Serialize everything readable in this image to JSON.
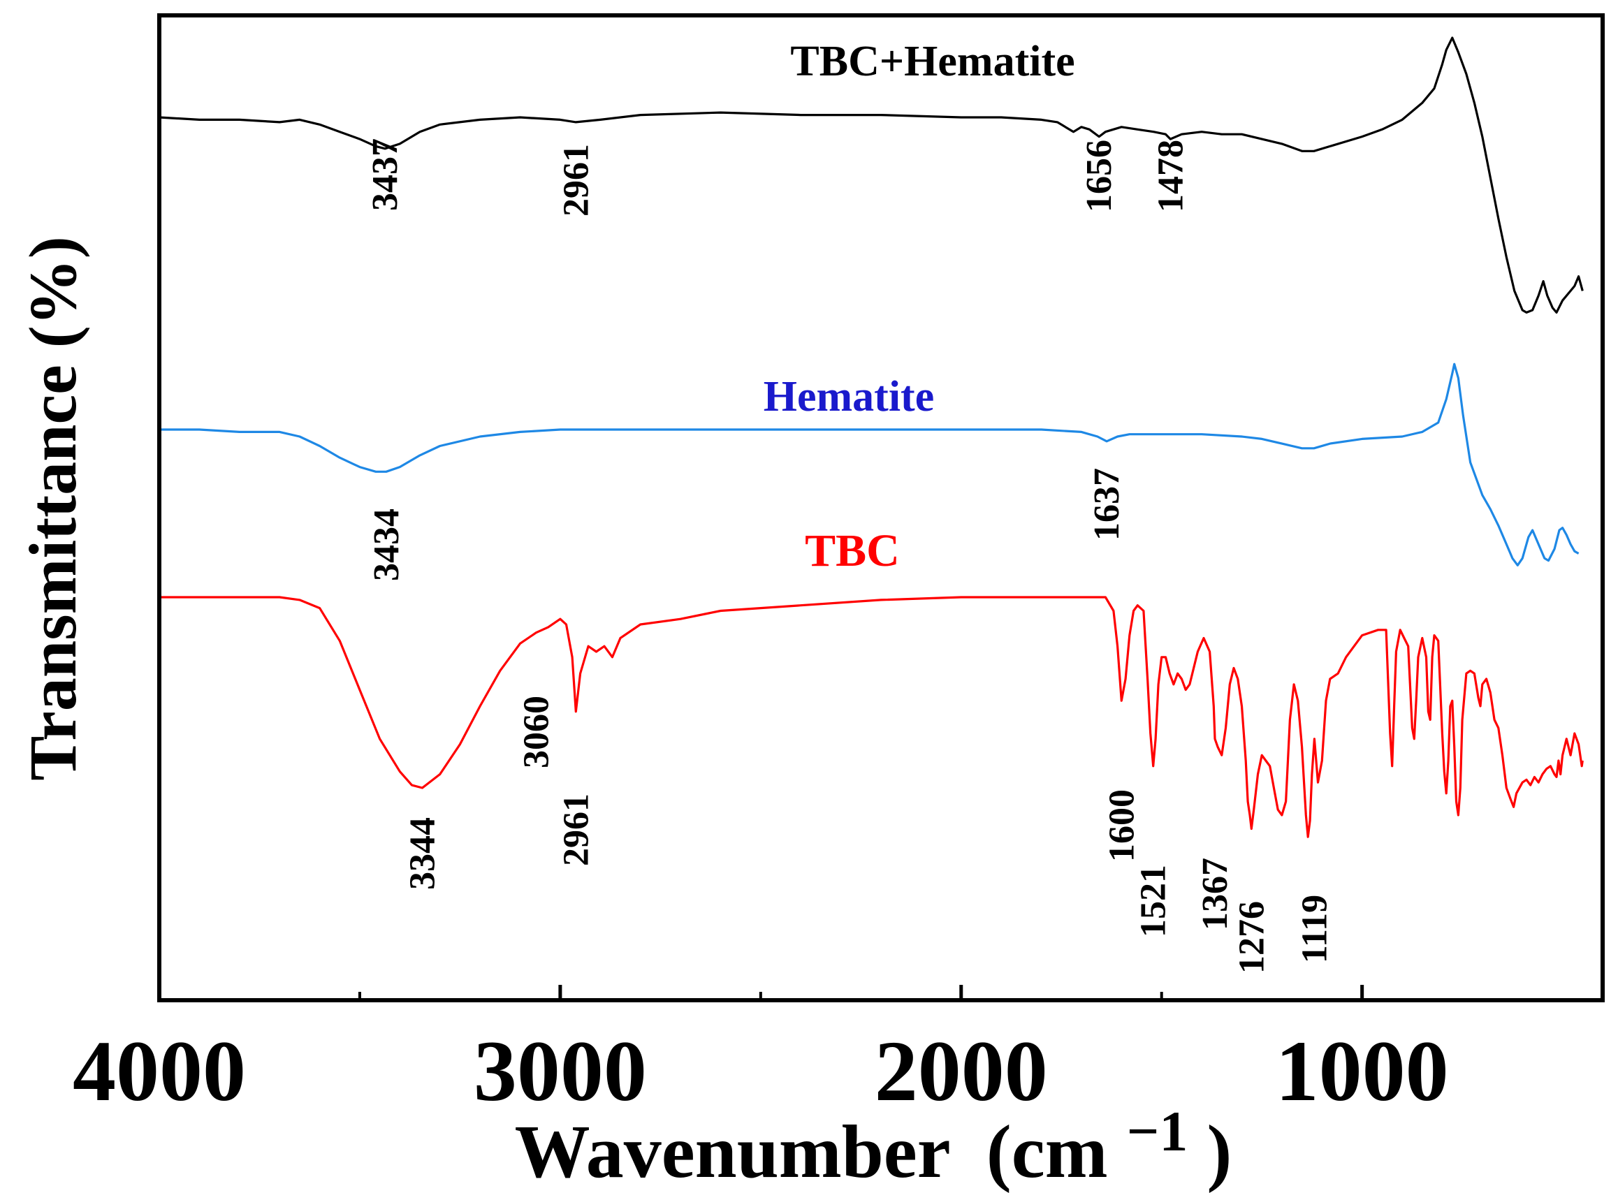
{
  "chart_data": {
    "type": "line",
    "title": "",
    "xlabel": "Wavenumber",
    "xlabel_unit": "(cm",
    "xlabel_sup": "−1",
    "xlabel_close": ")",
    "ylabel": "Transmittance (%)",
    "xlim": [
      4000,
      400
    ],
    "x_reversed": true,
    "xticks": [
      4000,
      3000,
      2000,
      1000
    ],
    "minor_xticks": [
      3500,
      2500,
      1500
    ],
    "y_ticks_shown": false,
    "grid": false,
    "series": [
      {
        "name": "TBC+Hematite",
        "label": "TBC+Hematite",
        "color": "#000000",
        "label_color": "#000000",
        "points": [
          [
            4000,
            100
          ],
          [
            3900,
            99
          ],
          [
            3800,
            99
          ],
          [
            3700,
            98
          ],
          [
            3650,
            99
          ],
          [
            3600,
            97
          ],
          [
            3550,
            94
          ],
          [
            3500,
            91
          ],
          [
            3460,
            88
          ],
          [
            3437,
            87
          ],
          [
            3400,
            89
          ],
          [
            3350,
            94
          ],
          [
            3300,
            97
          ],
          [
            3200,
            99
          ],
          [
            3100,
            100
          ],
          [
            3000,
            99
          ],
          [
            2961,
            98
          ],
          [
            2900,
            99
          ],
          [
            2800,
            101
          ],
          [
            2600,
            102
          ],
          [
            2400,
            101
          ],
          [
            2200,
            101
          ],
          [
            2000,
            100
          ],
          [
            1900,
            100
          ],
          [
            1800,
            99
          ],
          [
            1760,
            98
          ],
          [
            1720,
            94
          ],
          [
            1700,
            96
          ],
          [
            1680,
            95
          ],
          [
            1656,
            92
          ],
          [
            1640,
            94
          ],
          [
            1600,
            96
          ],
          [
            1560,
            95
          ],
          [
            1520,
            94
          ],
          [
            1490,
            93
          ],
          [
            1478,
            91
          ],
          [
            1450,
            93
          ],
          [
            1400,
            94
          ],
          [
            1350,
            93
          ],
          [
            1300,
            93
          ],
          [
            1250,
            91
          ],
          [
            1200,
            89
          ],
          [
            1150,
            86
          ],
          [
            1120,
            86
          ],
          [
            1080,
            88
          ],
          [
            1000,
            92
          ],
          [
            950,
            95
          ],
          [
            900,
            99
          ],
          [
            850,
            106
          ],
          [
            820,
            112
          ],
          [
            800,
            122
          ],
          [
            790,
            128
          ],
          [
            775,
            133
          ],
          [
            760,
            127
          ],
          [
            740,
            118
          ],
          [
            720,
            106
          ],
          [
            700,
            92
          ],
          [
            680,
            75
          ],
          [
            660,
            58
          ],
          [
            640,
            42
          ],
          [
            620,
            28
          ],
          [
            600,
            20
          ],
          [
            590,
            19
          ],
          [
            575,
            20
          ],
          [
            560,
            26
          ],
          [
            548,
            32
          ],
          [
            538,
            26
          ],
          [
            525,
            21
          ],
          [
            515,
            19
          ],
          [
            500,
            24
          ],
          [
            480,
            28
          ],
          [
            470,
            30
          ],
          [
            460,
            34
          ],
          [
            450,
            28
          ]
        ]
      },
      {
        "name": "Hematite",
        "label": "Hematite",
        "color": "#1e88e5",
        "label_color": "#1a1acc",
        "points": [
          [
            4000,
            100
          ],
          [
            3900,
            100
          ],
          [
            3800,
            99
          ],
          [
            3700,
            99
          ],
          [
            3650,
            97
          ],
          [
            3600,
            93
          ],
          [
            3550,
            88
          ],
          [
            3500,
            84
          ],
          [
            3460,
            82
          ],
          [
            3434,
            82
          ],
          [
            3400,
            84
          ],
          [
            3350,
            89
          ],
          [
            3300,
            93
          ],
          [
            3200,
            97
          ],
          [
            3100,
            99
          ],
          [
            3000,
            100
          ],
          [
            2800,
            100
          ],
          [
            2600,
            100
          ],
          [
            2400,
            100
          ],
          [
            2200,
            100
          ],
          [
            2000,
            100
          ],
          [
            1800,
            100
          ],
          [
            1700,
            99
          ],
          [
            1660,
            97
          ],
          [
            1637,
            95
          ],
          [
            1610,
            97
          ],
          [
            1580,
            98
          ],
          [
            1500,
            98
          ],
          [
            1400,
            98
          ],
          [
            1300,
            97
          ],
          [
            1250,
            96
          ],
          [
            1200,
            94
          ],
          [
            1150,
            92
          ],
          [
            1120,
            92
          ],
          [
            1080,
            94
          ],
          [
            1000,
            96
          ],
          [
            900,
            97
          ],
          [
            850,
            99
          ],
          [
            810,
            103
          ],
          [
            790,
            113
          ],
          [
            775,
            124
          ],
          [
            770,
            128
          ],
          [
            760,
            122
          ],
          [
            748,
            106
          ],
          [
            730,
            86
          ],
          [
            700,
            72
          ],
          [
            680,
            66
          ],
          [
            660,
            59
          ],
          [
            640,
            51
          ],
          [
            625,
            45
          ],
          [
            612,
            42
          ],
          [
            600,
            45
          ],
          [
            585,
            54
          ],
          [
            575,
            57
          ],
          [
            560,
            51
          ],
          [
            545,
            45
          ],
          [
            535,
            44
          ],
          [
            520,
            49
          ],
          [
            508,
            57
          ],
          [
            500,
            58
          ],
          [
            490,
            55
          ],
          [
            480,
            51
          ],
          [
            470,
            48
          ],
          [
            460,
            47
          ]
        ]
      },
      {
        "name": "TBC",
        "label": "TBC",
        "color": "#ff0000",
        "label_color": "#ff0000",
        "points": [
          [
            4000,
            100
          ],
          [
            3900,
            100
          ],
          [
            3800,
            100
          ],
          [
            3700,
            100
          ],
          [
            3650,
            99
          ],
          [
            3600,
            96
          ],
          [
            3550,
            84
          ],
          [
            3500,
            66
          ],
          [
            3450,
            48
          ],
          [
            3400,
            36
          ],
          [
            3370,
            31
          ],
          [
            3344,
            30
          ],
          [
            3300,
            35
          ],
          [
            3250,
            46
          ],
          [
            3200,
            60
          ],
          [
            3150,
            73
          ],
          [
            3100,
            83
          ],
          [
            3060,
            87
          ],
          [
            3030,
            89
          ],
          [
            3000,
            92
          ],
          [
            2985,
            90
          ],
          [
            2970,
            78
          ],
          [
            2961,
            58
          ],
          [
            2950,
            72
          ],
          [
            2930,
            82
          ],
          [
            2910,
            80
          ],
          [
            2890,
            82
          ],
          [
            2870,
            78
          ],
          [
            2850,
            85
          ],
          [
            2800,
            90
          ],
          [
            2700,
            92
          ],
          [
            2600,
            95
          ],
          [
            2400,
            97
          ],
          [
            2200,
            99
          ],
          [
            2000,
            100
          ],
          [
            1800,
            100
          ],
          [
            1700,
            100
          ],
          [
            1640,
            100
          ],
          [
            1620,
            95
          ],
          [
            1610,
            82
          ],
          [
            1600,
            62
          ],
          [
            1590,
            70
          ],
          [
            1580,
            86
          ],
          [
            1570,
            95
          ],
          [
            1560,
            97
          ],
          [
            1545,
            95
          ],
          [
            1535,
            70
          ],
          [
            1528,
            50
          ],
          [
            1521,
            38
          ],
          [
            1515,
            48
          ],
          [
            1508,
            68
          ],
          [
            1500,
            78
          ],
          [
            1490,
            78
          ],
          [
            1480,
            72
          ],
          [
            1470,
            68
          ],
          [
            1460,
            72
          ],
          [
            1450,
            70
          ],
          [
            1440,
            66
          ],
          [
            1430,
            68
          ],
          [
            1410,
            80
          ],
          [
            1395,
            85
          ],
          [
            1380,
            80
          ],
          [
            1370,
            60
          ],
          [
            1367,
            48
          ],
          [
            1360,
            45
          ],
          [
            1350,
            42
          ],
          [
            1340,
            52
          ],
          [
            1330,
            68
          ],
          [
            1320,
            74
          ],
          [
            1310,
            70
          ],
          [
            1300,
            60
          ],
          [
            1290,
            40
          ],
          [
            1285,
            25
          ],
          [
            1280,
            20
          ],
          [
            1276,
            15
          ],
          [
            1270,
            22
          ],
          [
            1260,
            35
          ],
          [
            1250,
            42
          ],
          [
            1240,
            40
          ],
          [
            1230,
            38
          ],
          [
            1220,
            30
          ],
          [
            1210,
            22
          ],
          [
            1200,
            20
          ],
          [
            1190,
            25
          ],
          [
            1185,
            40
          ],
          [
            1180,
            55
          ],
          [
            1170,
            68
          ],
          [
            1160,
            62
          ],
          [
            1150,
            45
          ],
          [
            1140,
            20
          ],
          [
            1135,
            12
          ],
          [
            1130,
            18
          ],
          [
            1125,
            35
          ],
          [
            1119,
            48
          ],
          [
            1110,
            32
          ],
          [
            1100,
            40
          ],
          [
            1090,
            62
          ],
          [
            1080,
            70
          ],
          [
            1060,
            72
          ],
          [
            1040,
            78
          ],
          [
            1020,
            82
          ],
          [
            1000,
            86
          ],
          [
            960,
            88
          ],
          [
            940,
            88
          ],
          [
            930,
            50
          ],
          [
            925,
            38
          ],
          [
            920,
            60
          ],
          [
            915,
            80
          ],
          [
            905,
            88
          ],
          [
            895,
            85
          ],
          [
            885,
            82
          ],
          [
            875,
            52
          ],
          [
            870,
            48
          ],
          [
            865,
            62
          ],
          [
            860,
            78
          ],
          [
            850,
            85
          ],
          [
            840,
            78
          ],
          [
            835,
            58
          ],
          [
            830,
            55
          ],
          [
            825,
            78
          ],
          [
            820,
            86
          ],
          [
            810,
            84
          ],
          [
            800,
            50
          ],
          [
            795,
            36
          ],
          [
            790,
            28
          ],
          [
            785,
            40
          ],
          [
            780,
            60
          ],
          [
            775,
            62
          ],
          [
            770,
            45
          ],
          [
            765,
            25
          ],
          [
            760,
            20
          ],
          [
            755,
            30
          ],
          [
            750,
            55
          ],
          [
            740,
            72
          ],
          [
            730,
            73
          ],
          [
            720,
            72
          ],
          [
            710,
            63
          ],
          [
            705,
            60
          ],
          [
            700,
            68
          ],
          [
            690,
            70
          ],
          [
            680,
            65
          ],
          [
            670,
            55
          ],
          [
            660,
            52
          ],
          [
            650,
            42
          ],
          [
            640,
            30
          ],
          [
            630,
            26
          ],
          [
            622,
            23
          ],
          [
            615,
            28
          ],
          [
            600,
            32
          ],
          [
            590,
            33
          ],
          [
            580,
            31
          ],
          [
            570,
            34
          ],
          [
            560,
            32
          ],
          [
            550,
            35
          ],
          [
            540,
            37
          ],
          [
            530,
            38
          ],
          [
            520,
            35
          ],
          [
            515,
            34
          ],
          [
            510,
            40
          ],
          [
            505,
            35
          ],
          [
            500,
            42
          ],
          [
            490,
            48
          ],
          [
            480,
            42
          ],
          [
            470,
            50
          ],
          [
            460,
            46
          ],
          [
            452,
            38
          ],
          [
            450,
            40
          ]
        ]
      }
    ],
    "annotations": [
      {
        "series": "TBC+Hematite",
        "text": "3437",
        "x": 3437
      },
      {
        "series": "TBC+Hematite",
        "text": "2961",
        "x": 2961
      },
      {
        "series": "TBC+Hematite",
        "text": "1656",
        "x": 1656
      },
      {
        "series": "TBC+Hematite",
        "text": "1478",
        "x": 1478
      },
      {
        "series": "Hematite",
        "text": "3434",
        "x": 3434
      },
      {
        "series": "Hematite",
        "text": "1637",
        "x": 1637
      },
      {
        "series": "TBC",
        "text": "3344",
        "x": 3344
      },
      {
        "series": "TBC",
        "text": "3060",
        "x": 3060
      },
      {
        "series": "TBC",
        "text": "2961",
        "x": 2961
      },
      {
        "series": "TBC",
        "text": "1600",
        "x": 1600
      },
      {
        "series": "TBC",
        "text": "1521",
        "x": 1521
      },
      {
        "series": "TBC",
        "text": "1367",
        "x": 1367
      },
      {
        "series": "TBC",
        "text": "1276",
        "x": 1276
      },
      {
        "series": "TBC",
        "text": "1119",
        "x": 1119
      }
    ]
  }
}
